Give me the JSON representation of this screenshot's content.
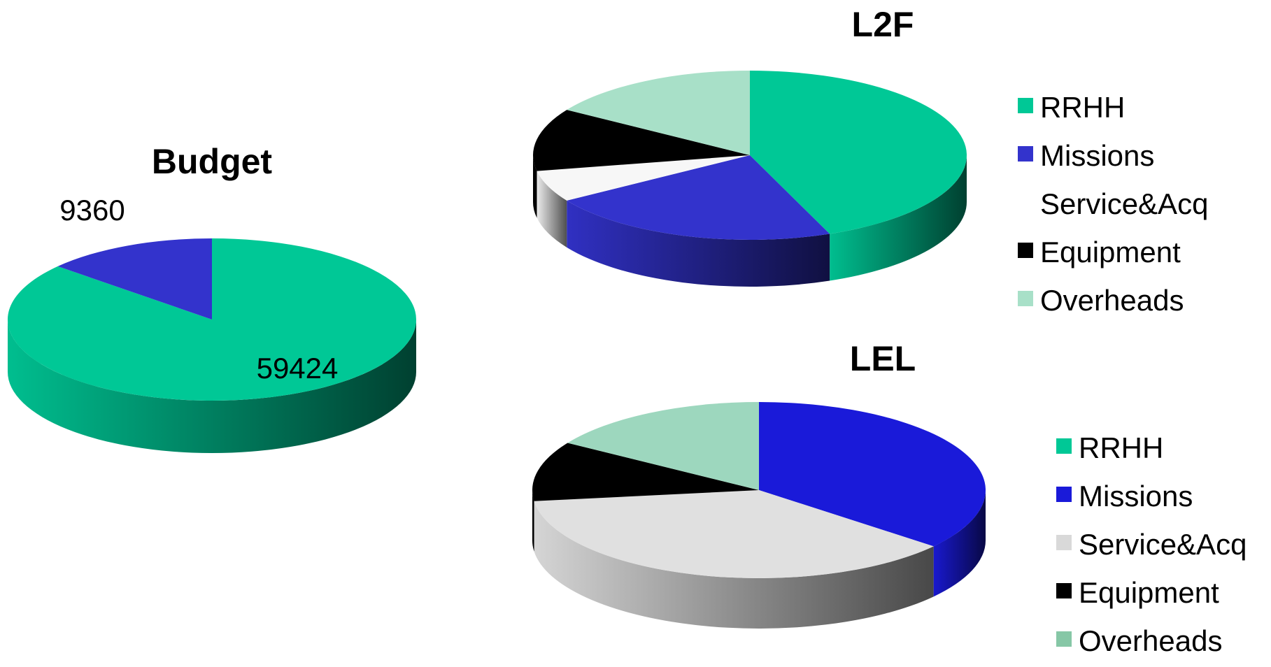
{
  "chart_data": [
    {
      "type": "pie",
      "style": "3d",
      "title": "Budget",
      "categories": [
        "RRHH",
        "Missions"
      ],
      "values": [
        59424,
        9360
      ],
      "data_labels": [
        "59424",
        "9360"
      ],
      "colors": [
        "#00c896",
        "#3333cc"
      ]
    },
    {
      "type": "pie",
      "style": "3d",
      "title": "L2F",
      "categories": [
        "RRHH",
        "Missions",
        "Service&Acq",
        "Equipment",
        "Overheads"
      ],
      "values": [
        44,
        22,
        6,
        12,
        16
      ],
      "colors": [
        "#00c896",
        "#3333cc",
        "#f7f7f7",
        "#000000",
        "#a8e0c8"
      ],
      "legend": {
        "position": "right",
        "entries": [
          "RRHH",
          "Missions",
          "Service&Acq",
          "Equipment",
          "Overheads"
        ],
        "colors": [
          "#00c896",
          "#3333cc",
          "#ffffff",
          "#000000",
          "#a8e0c8"
        ]
      }
    },
    {
      "type": "pie",
      "style": "3d",
      "title": "LEL",
      "categories": [
        "RRHH",
        "Missions",
        "Service&Acq",
        "Equipment",
        "Overheads"
      ],
      "values": [
        0,
        36,
        37,
        11,
        16
      ],
      "colors": [
        "#00c896",
        "#1a1ad9",
        "#e0e0e0",
        "#000000",
        "#9dd7be"
      ],
      "legend": {
        "position": "right",
        "entries": [
          "RRHH",
          "Missions",
          "Service&Acq",
          "Equipment",
          "Overheads"
        ],
        "colors": [
          "#00c896",
          "#1a1ad9",
          "#d9d9d9",
          "#000000",
          "#86c7a6"
        ]
      }
    }
  ]
}
